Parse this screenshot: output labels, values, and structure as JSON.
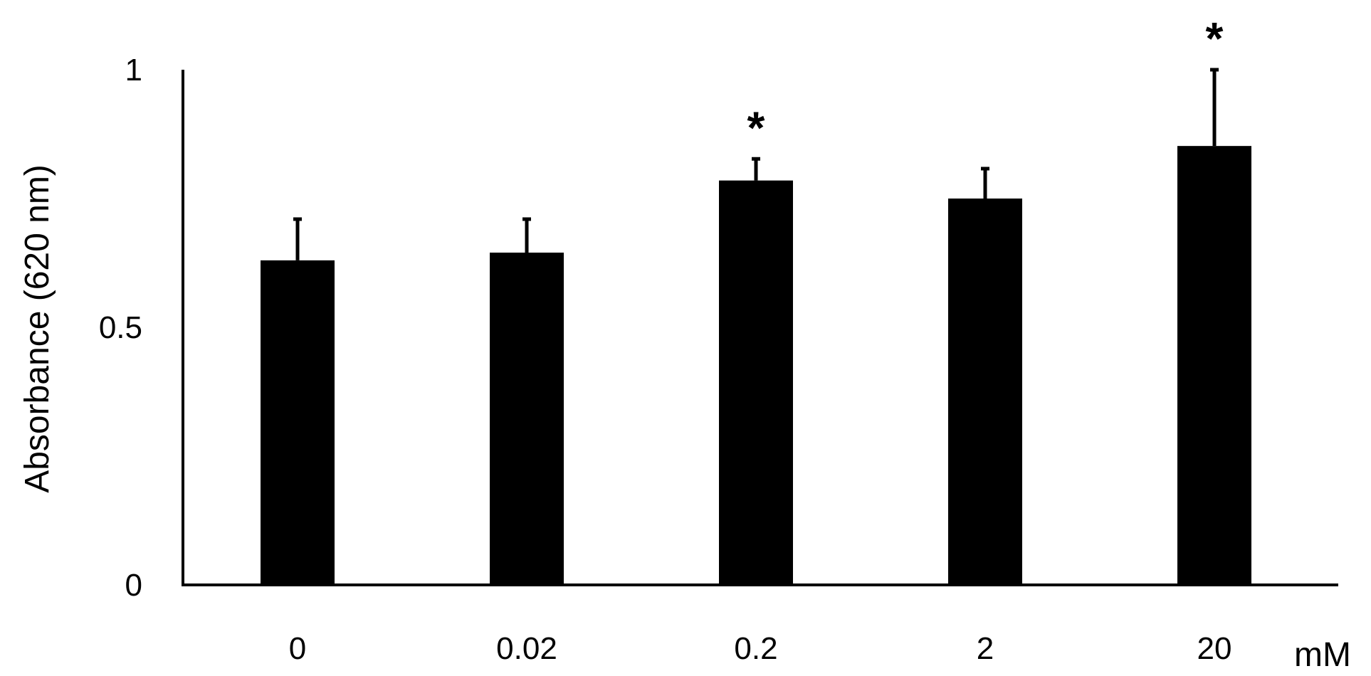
{
  "chart_data": {
    "type": "bar",
    "title": "",
    "xlabel": "",
    "x_unit_label": "mM",
    "ylabel": "Absorbance (620 nm)",
    "categories": [
      "0",
      "0.02",
      "0.2",
      "2",
      "20"
    ],
    "values": [
      0.63,
      0.645,
      0.785,
      0.75,
      0.852
    ],
    "error_upper": [
      0.71,
      0.71,
      0.827,
      0.808,
      1.0
    ],
    "significance": [
      "",
      "",
      "*",
      "",
      "*"
    ],
    "ylim": [
      0,
      1
    ],
    "yticks": [
      {
        "value": 0,
        "label": "0"
      },
      {
        "value": 0.5,
        "label": "0.5"
      },
      {
        "value": 1,
        "label": "1"
      }
    ],
    "grid": false,
    "bar_color": "#000000",
    "axis_color": "#000000"
  }
}
